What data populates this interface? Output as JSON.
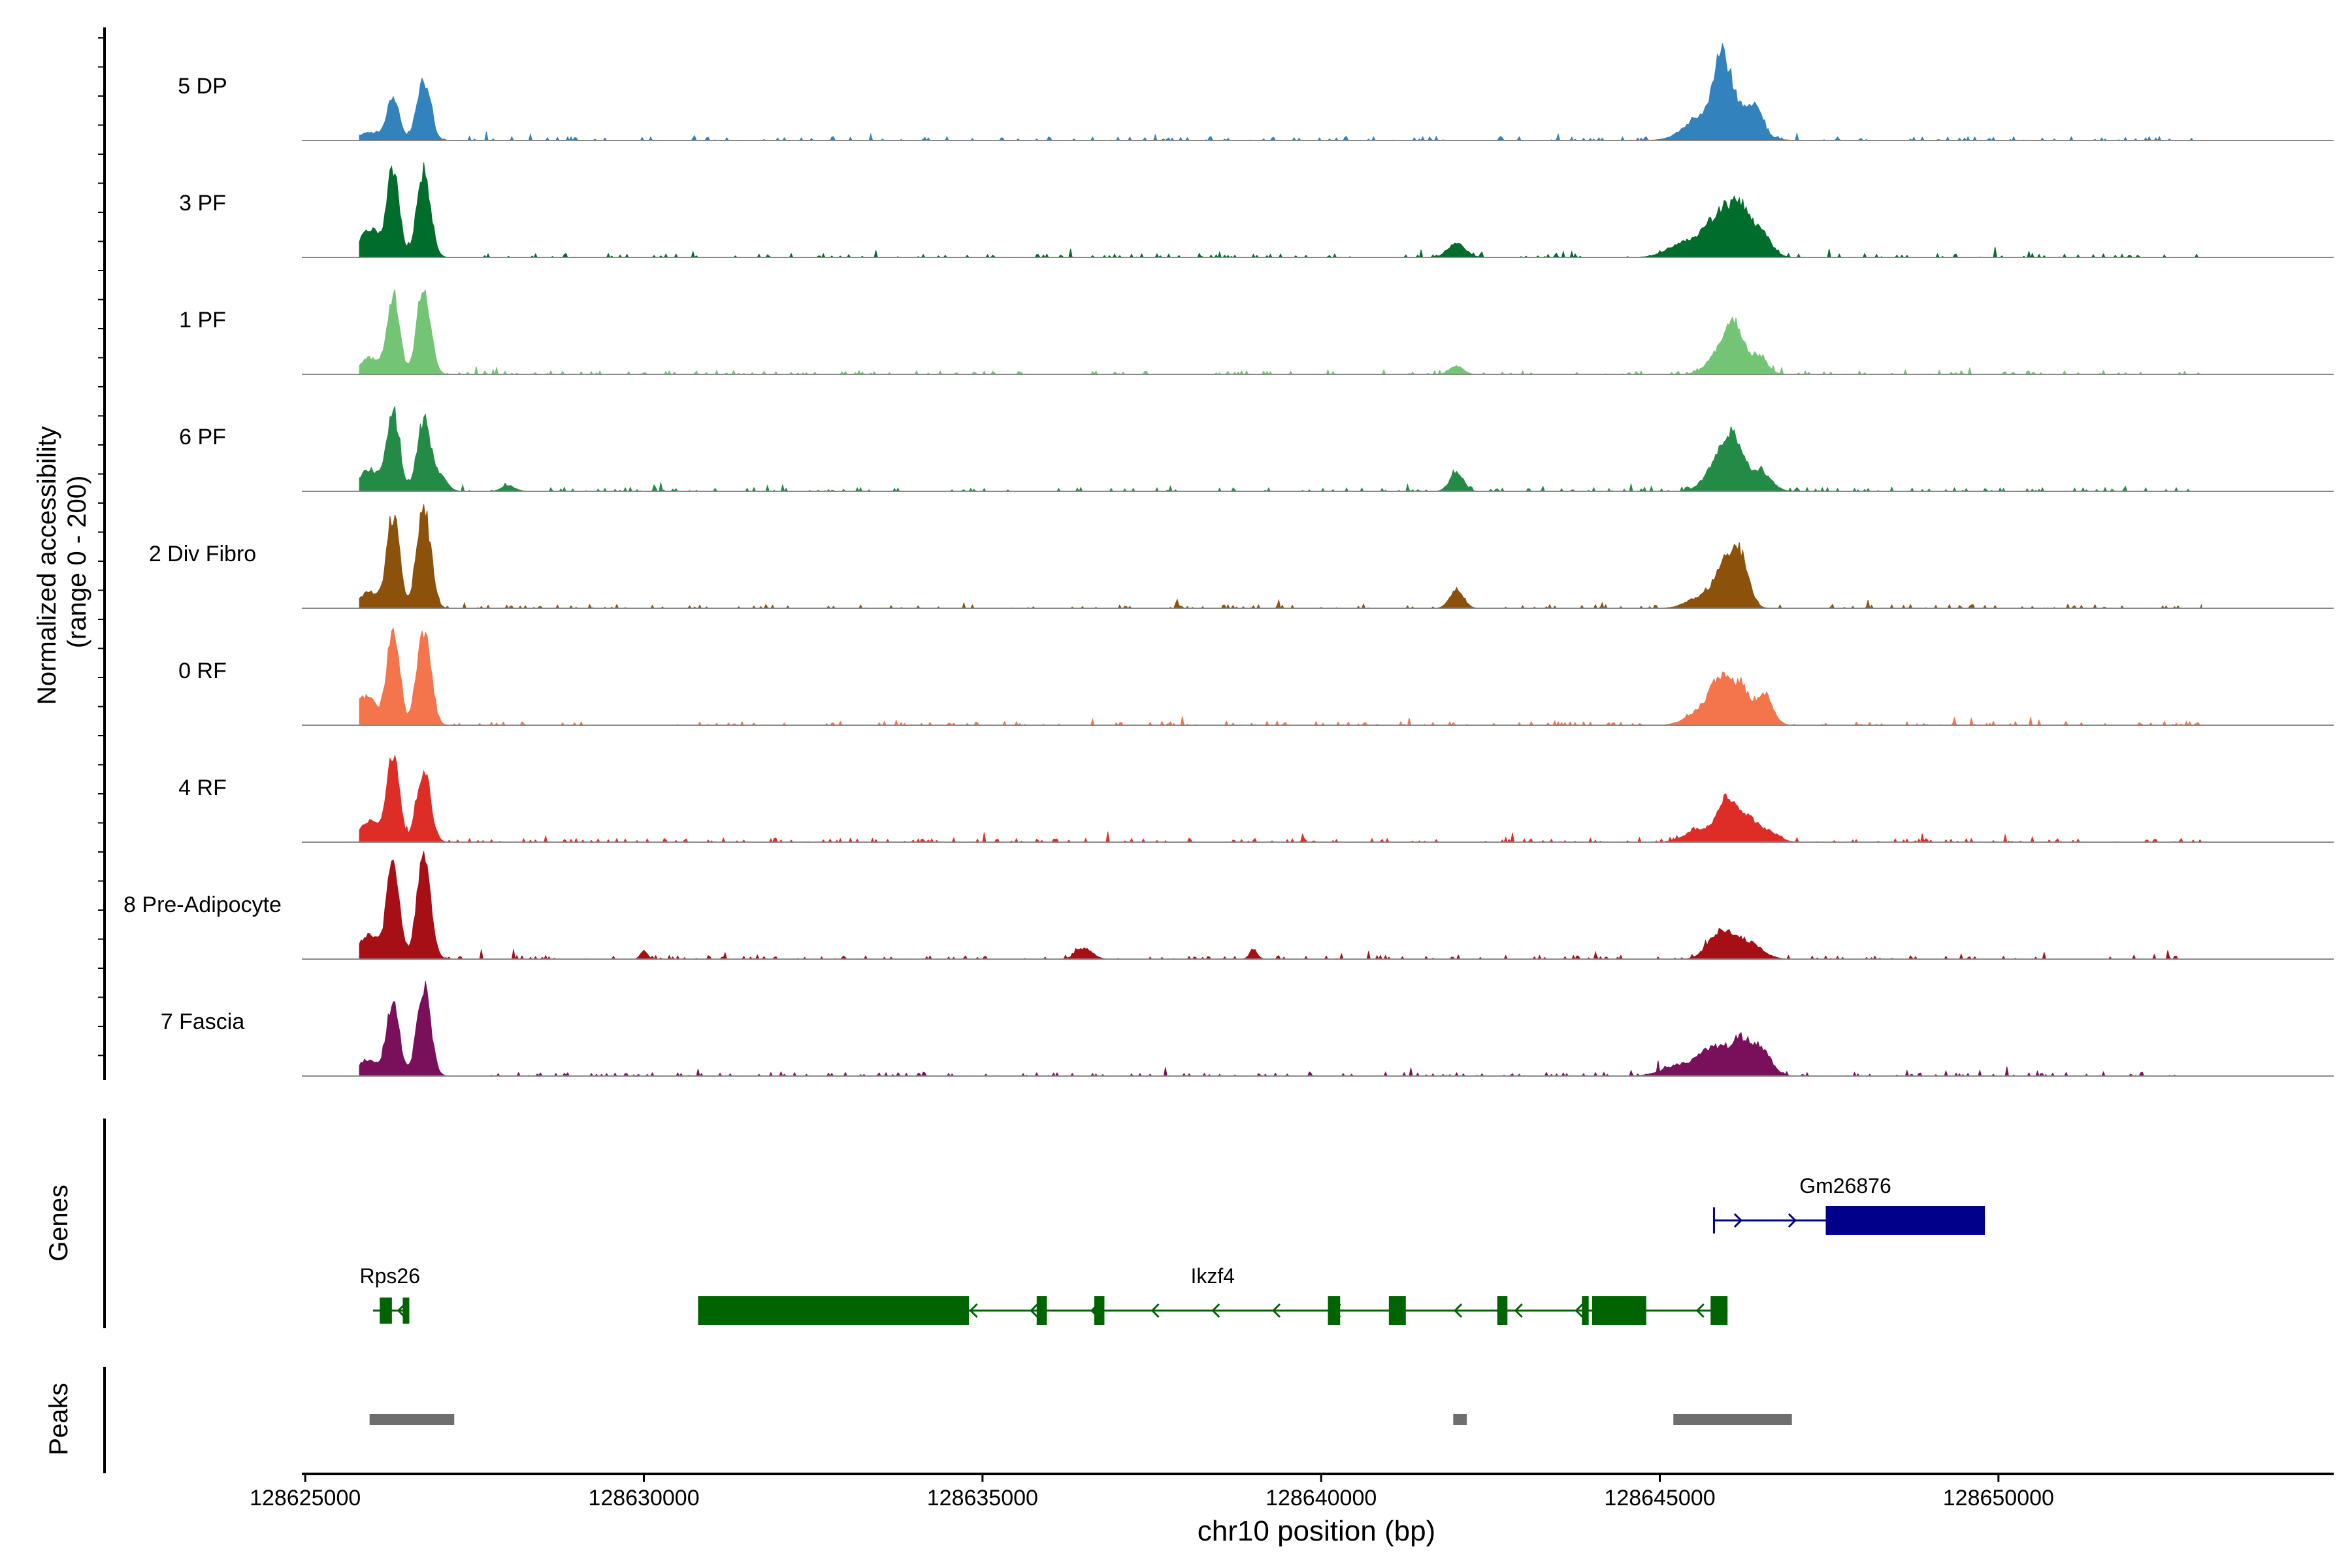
{
  "chart_data": {
    "type": "area",
    "title": "",
    "ylabel_line1": "Normalized accessibility",
    "ylabel_line2": "(range 0 - 200)",
    "xlabel": "chr10 position (bp)",
    "xlim": [
      128624950,
      128654950
    ],
    "xticks": [
      128625000,
      128630000,
      128635000,
      128640000,
      128645000,
      128650000
    ],
    "xtick_labels": [
      "128625000",
      "128630000",
      "128635000",
      "128640000",
      "128645000",
      "128650000"
    ],
    "ylim": [
      0,
      200
    ],
    "tracks": [
      {
        "name": "5 DP",
        "color": "#3182bd",
        "peaks": [
          [
            128626300,
            80,
            90
          ],
          [
            128626750,
            110,
            100
          ],
          [
            128625950,
            15,
            150
          ],
          [
            128645900,
            120,
            110
          ],
          [
            128645600,
            30,
            250
          ],
          [
            128646400,
            60,
            110
          ],
          [
            128646100,
            45,
            100
          ],
          [
            128646000,
            25,
            350
          ]
        ]
      },
      {
        "name": "3 PF",
        "color": "#006d2c",
        "peaks": [
          [
            128626300,
            165,
            90
          ],
          [
            128626750,
            160,
            100
          ],
          [
            128625950,
            50,
            150
          ],
          [
            128642000,
            25,
            130
          ],
          [
            128645900,
            75,
            200
          ],
          [
            128646200,
            70,
            150
          ],
          [
            128646500,
            40,
            150
          ],
          [
            128645400,
            30,
            250
          ]
        ]
      },
      {
        "name": "1 PF",
        "color": "#74c476",
        "peaks": [
          [
            128626300,
            150,
            90
          ],
          [
            128626750,
            160,
            100
          ],
          [
            128625950,
            30,
            150
          ],
          [
            128642000,
            15,
            100
          ],
          [
            128645900,
            40,
            180
          ],
          [
            128646100,
            75,
            130
          ],
          [
            128646450,
            35,
            130
          ]
        ]
      },
      {
        "name": "6 PF",
        "color": "#238b45",
        "peaks": [
          [
            128626300,
            145,
            90
          ],
          [
            128626750,
            130,
            100
          ],
          [
            128625950,
            40,
            150
          ],
          [
            128627000,
            25,
            100
          ],
          [
            128628000,
            10,
            100
          ],
          [
            128642000,
            35,
            100
          ],
          [
            128645900,
            55,
            200
          ],
          [
            128646100,
            70,
            150
          ],
          [
            128646500,
            35,
            150
          ]
        ]
      },
      {
        "name": "2 Div Fibro",
        "color": "#8c510a",
        "peaks": [
          [
            128626300,
            175,
            90
          ],
          [
            128626750,
            185,
            100
          ],
          [
            128625950,
            30,
            150
          ],
          [
            128642000,
            35,
            100
          ],
          [
            128645950,
            80,
            140
          ],
          [
            128646200,
            90,
            120
          ],
          [
            128645600,
            20,
            200
          ]
        ]
      },
      {
        "name": "0 RF",
        "color": "#f4744b",
        "peaks": [
          [
            128626300,
            175,
            90
          ],
          [
            128626750,
            180,
            100
          ],
          [
            128625900,
            55,
            150
          ],
          [
            128645900,
            80,
            150
          ],
          [
            128646200,
            65,
            130
          ],
          [
            128646550,
            55,
            120
          ],
          [
            128645600,
            25,
            200
          ]
        ]
      },
      {
        "name": "4 RF",
        "color": "#de2d26",
        "peaks": [
          [
            128626300,
            160,
            90
          ],
          [
            128626750,
            135,
            100
          ],
          [
            128625950,
            40,
            150
          ],
          [
            128646000,
            80,
            130
          ],
          [
            128646300,
            40,
            130
          ],
          [
            128645600,
            25,
            200
          ],
          [
            128646600,
            20,
            150
          ]
        ]
      },
      {
        "name": "8 Pre-Adipocyte",
        "color": "#a50f15",
        "peaks": [
          [
            128626300,
            185,
            90
          ],
          [
            128626750,
            200,
            100
          ],
          [
            128625950,
            45,
            150
          ],
          [
            128630000,
            15,
            50
          ],
          [
            128636500,
            20,
            120
          ],
          [
            128645900,
            50,
            180
          ],
          [
            128646300,
            30,
            200
          ],
          [
            128639000,
            15,
            60
          ]
        ]
      },
      {
        "name": "7 Fascia",
        "color": "#7a0f5c",
        "peaks": [
          [
            128626300,
            140,
            90
          ],
          [
            128626750,
            165,
            100
          ],
          [
            128625950,
            30,
            150
          ],
          [
            128645800,
            50,
            200
          ],
          [
            128646200,
            60,
            150
          ],
          [
            128646500,
            45,
            150
          ],
          [
            128645300,
            20,
            250
          ]
        ]
      }
    ],
    "genes_label": "Genes",
    "genes": [
      {
        "name": "Rps26",
        "strand": "-",
        "color": "#006400",
        "start": 128626000,
        "end": 128626500,
        "exons": [
          [
            128626100,
            128626280
          ],
          [
            128626440,
            128626470
          ]
        ]
      },
      {
        "name": "Ikzf4",
        "strand": "-",
        "color": "#006400",
        "start": 128630800,
        "end": 128646000,
        "exons": [
          [
            128630800,
            128634800
          ],
          [
            128635800,
            128635950
          ],
          [
            128636650,
            128636800
          ],
          [
            128640100,
            128640280
          ],
          [
            128641000,
            128641250
          ],
          [
            128642600,
            128642750
          ],
          [
            128643850,
            128643950
          ],
          [
            128644000,
            128644800
          ],
          [
            128645750,
            128646000
          ]
        ]
      },
      {
        "name": "Gm26876",
        "strand": "+",
        "color": "#00008b",
        "start": 128645800,
        "end": 128649800,
        "exons": [
          [
            128647450,
            128649800
          ]
        ]
      }
    ],
    "peaks_label": "Peaks",
    "peak_regions": [
      [
        128625950,
        128627200
      ],
      [
        128641950,
        128642150
      ],
      [
        128645200,
        128646950
      ]
    ],
    "peak_color": "#6e6e6e"
  }
}
